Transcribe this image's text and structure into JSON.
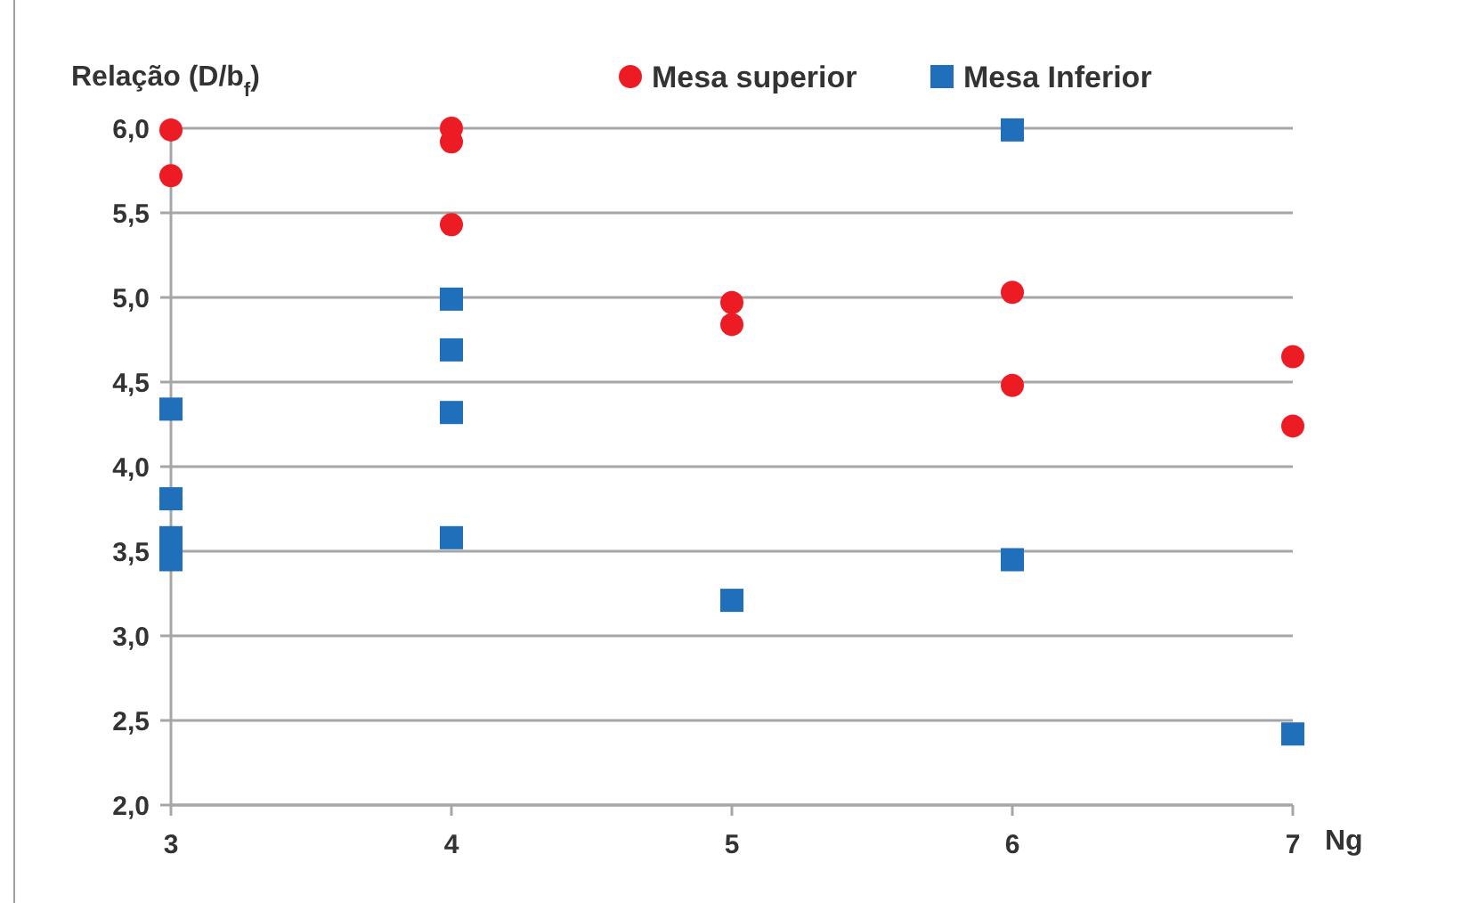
{
  "chart_data": {
    "type": "scatter",
    "xlabel": "Ng",
    "ylabel": "Relação (D/b$_{f}$)",
    "xlim": [
      3,
      7
    ],
    "xticks": [
      3,
      4,
      5,
      6,
      7
    ],
    "ylim": [
      2,
      6
    ],
    "yticks": [
      {
        "value": 2,
        "label": "2,0"
      },
      {
        "value": 2.5,
        "label": "2,5"
      },
      {
        "value": 3,
        "label": "3,0"
      },
      {
        "value": 3.5,
        "label": "3,5"
      },
      {
        "value": 4,
        "label": "4,0"
      },
      {
        "value": 4.5,
        "label": "4,5"
      },
      {
        "value": 5,
        "label": "5,0"
      },
      {
        "value": 5.5,
        "label": "5,5"
      },
      {
        "value": 6,
        "label": "6,0"
      }
    ],
    "grid": "y",
    "legend": "top",
    "series": [
      {
        "name": "Mesa superior",
        "color": "#ed1c24",
        "marker": "circle",
        "x": [
          3,
          3,
          4,
          4,
          4,
          5,
          5,
          6,
          6,
          7,
          7
        ],
        "values": [
          5.99,
          5.72,
          6.0,
          5.92,
          5.43,
          4.97,
          4.84,
          5.03,
          4.48,
          4.65,
          4.24
        ]
      },
      {
        "name": "Mesa Inferior",
        "color": "#1f6fba",
        "marker": "square",
        "x": [
          3,
          3,
          3,
          3,
          4,
          4,
          4,
          4,
          5,
          6,
          6,
          7
        ],
        "values": [
          4.34,
          3.81,
          3.58,
          3.45,
          4.99,
          4.69,
          4.32,
          3.58,
          3.21,
          5.99,
          3.45,
          2.42
        ]
      }
    ]
  }
}
